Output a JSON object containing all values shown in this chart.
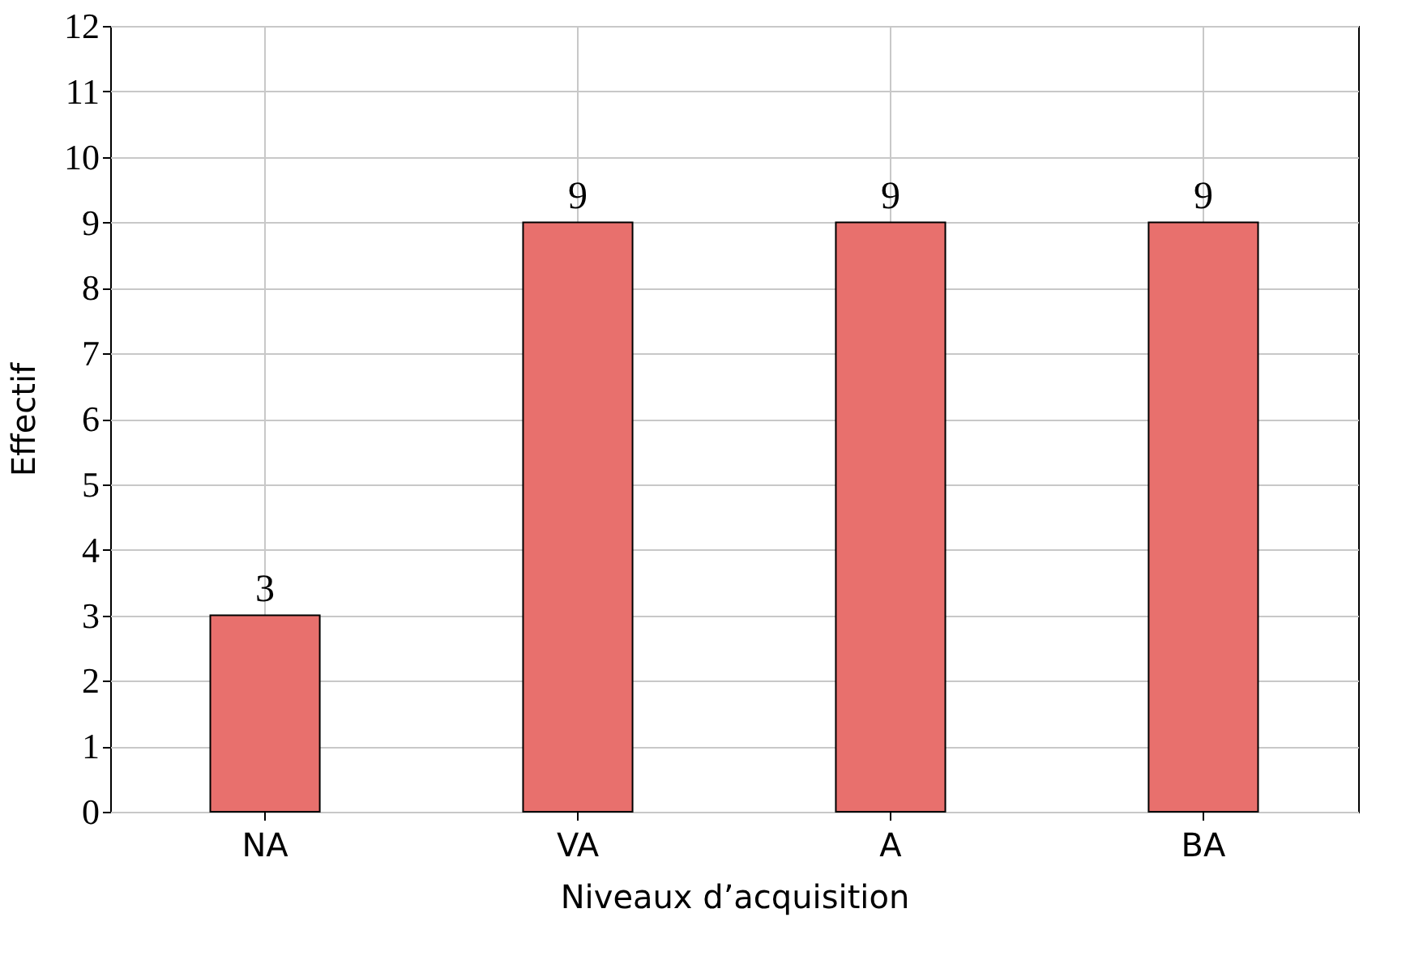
{
  "chart_data": {
    "type": "bar",
    "xlabel": "Niveaux d’acquisition",
    "ylabel": "Effectif",
    "categories": [
      "NA",
      "VA",
      "A",
      "BA"
    ],
    "values": [
      3,
      9,
      9,
      9
    ],
    "color": "#e8706d",
    "ylim": [
      0,
      12
    ],
    "yticks": [
      0,
      1,
      2,
      3,
      4,
      5,
      6,
      7,
      8,
      9,
      10,
      11,
      12
    ],
    "grid": true,
    "data_labels": true
  }
}
